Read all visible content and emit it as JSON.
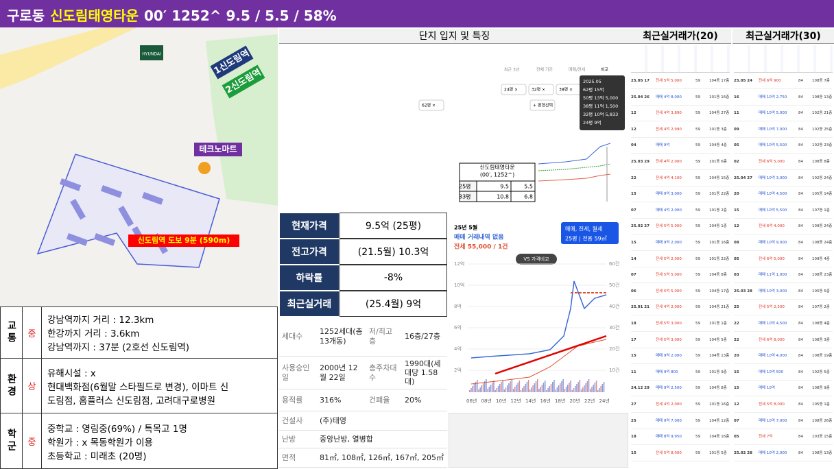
{
  "header": {
    "district": "구로동",
    "name": "신도림태영타운",
    "stats": "00′ 1252^ 9.5 / 5.5 / 58%"
  },
  "map": {
    "labels": [
      "1신도림역",
      "2신도림역",
      "테크노마트",
      "신도림역 도보 9분 (590m)",
      "HYUNDAI"
    ]
  },
  "location": {
    "rows": [
      {
        "category": "교통",
        "grade": "중",
        "lines": [
          "강남역까지 거리 : 12.3km",
          "한강까지 거리 : 3.6km",
          "강남역까지 : 37분 (2호선 신도림역)"
        ]
      },
      {
        "category": "환경",
        "grade": "상",
        "lines": [
          "유해시설 : x",
          "현대백화점(6월말 스타필드로 변경), 이마트 신",
          "도림점, 홈플러스 신도림점, 고려대구로병원"
        ]
      },
      {
        "category": "학군",
        "grade": "중",
        "lines": [
          "중학교 : 영림중(69%) / 특목고 1명",
          "학원가 : x 목동학원가 이용",
          "초등학교 : 미래초 (20명)"
        ]
      }
    ]
  },
  "middle": {
    "title": "단지 입지 및 특징",
    "compare": {
      "tabs": [
        "최근 3년",
        "전체 기간",
        "매매/전세",
        "비교"
      ],
      "filters": [
        "24평 ×",
        "32평 ×",
        "38평 ×",
        "62평 ×",
        "+ 평형선택"
      ],
      "tooltip": [
        "2025.05",
        "62평 15억",
        "50평 13억 5,000",
        "38평 11억 1,500",
        "32평 10억 5,833",
        "24평 9억"
      ],
      "legend": [
        "신도림태영타운",
        "(00′, 1252^)"
      ],
      "rows": [
        [
          "25평",
          "9.5",
          "5.5"
        ],
        [
          "33평",
          "10.8",
          "6.8"
        ]
      ]
    },
    "price_table": [
      [
        "현재가격",
        "9.5억 (25평)"
      ],
      [
        "전고가격",
        "(21.5월) 10.3억"
      ],
      [
        "하락률",
        "-8%"
      ],
      [
        "최근실거래",
        "(25.4월) 9억"
      ]
    ],
    "info_table": [
      [
        "세대수",
        "1252세대(총 13개동)",
        "저/최고층",
        "16층/27층"
      ],
      [
        "사용승인일",
        "2000년 12월 22일",
        "총주차대수",
        "1990대(세대당 1.58대)"
      ],
      [
        "용적률",
        "316%",
        "건폐율",
        "20%"
      ],
      [
        "건설사",
        "(주)태영"
      ],
      [
        "난방",
        "중앙난방, 열병합"
      ],
      [
        "면적",
        "81㎡, 108㎡, 126㎡, 167㎡, 205㎡"
      ]
    ],
    "trend": {
      "month": "25년 5월",
      "sale": "매매 거래내역 없음",
      "rent": "전세 55,000 / 1건",
      "filter": "매매, 전세, 월세",
      "size": "25평 | 전용 59㎡",
      "compare": "VS 가격비교",
      "left_ticks": [
        "12억",
        "10억",
        "8억",
        "6억",
        "4억",
        "2억"
      ],
      "right_ticks": [
        "60건",
        "50건",
        "40건",
        "30건",
        "20건",
        "10건"
      ],
      "x_ticks": [
        "06년",
        "08년",
        "10년",
        "12년",
        "14년",
        "16년",
        "18년",
        "20년",
        "22년",
        "24년"
      ]
    }
  },
  "transactions": [
    {
      "title": "최근실거래가(20)",
      "rows": [
        [
          "25.05 17",
          "전세 5억 5,000",
          "59",
          "104동 17층"
        ],
        [
          "25.04 26",
          "매매 4억 8,000",
          "59",
          "101동 16층"
        ],
        [
          "12",
          "전세 4억 3,890",
          "59",
          "104동 27층"
        ],
        [
          "12",
          "전세 4억 2,990",
          "59",
          "101동 3층"
        ],
        [
          "04",
          "매매 9억",
          "59",
          "104동 4층"
        ],
        [
          "25.03 29",
          "전세 4억 2,000",
          "59",
          "101동 6층"
        ],
        [
          "22",
          "전세 4억 4,100",
          "59",
          "104동 15층"
        ],
        [
          "15",
          "매매 9억 3,000",
          "59",
          "101동 22층"
        ],
        [
          "07",
          "매매 4억 2,000",
          "59",
          "101동 2층"
        ],
        [
          "25.02 27",
          "전세 5억 5,000",
          "59",
          "104동 1층"
        ],
        [
          "15",
          "매매 9억 2,000",
          "59",
          "101동 16층"
        ],
        [
          "14",
          "전세 5억 2,000",
          "59",
          "101동 22층"
        ],
        [
          "07",
          "전세 5억 5,000",
          "59",
          "104동 8층"
        ],
        [
          "06",
          "전세 5억 5,000",
          "59",
          "104동 17층"
        ],
        [
          "25.01 21",
          "전세 4억 2,000",
          "59",
          "104동 21층"
        ],
        [
          "18",
          "전세 5억 3,000",
          "59",
          "101동 1층"
        ],
        [
          "17",
          "전세 5억 3,000",
          "59",
          "104동 5층"
        ],
        [
          "15",
          "매매 9억 2,000",
          "59",
          "104동 13층"
        ],
        [
          "11",
          "매매 9억 800",
          "59",
          "101동 9층"
        ],
        [
          "24.12 29",
          "매매 9억 2,500",
          "59",
          "104동 8층"
        ],
        [
          "27",
          "전세 4억 2,000",
          "59",
          "101동 16층"
        ],
        [
          "25",
          "매매 9억 7,000",
          "59",
          "104동 12층"
        ],
        [
          "18",
          "매매 8억 9,950",
          "59",
          "104동 16층"
        ],
        [
          "15",
          "전세 5억 8,000",
          "59",
          "101동 5층"
        ]
      ]
    },
    {
      "title": "최근실거래가(30)",
      "rows": [
        [
          "25.05 24",
          "전세 6억 900",
          "84",
          "108동 7층"
        ],
        [
          "16",
          "매매 10억 2,750",
          "84",
          "108동 13층"
        ],
        [
          "11",
          "매매 10억 5,000",
          "84",
          "102동 21층"
        ],
        [
          "09",
          "매매 10억 7,000",
          "84",
          "102동 25층"
        ],
        [
          "05",
          "매매 10억 5,500",
          "84",
          "102동 23층"
        ],
        [
          "02",
          "전세 6억 5,000",
          "84",
          "108동 8층"
        ],
        [
          "25.04 27",
          "매매 10억 3,000",
          "84",
          "102동 24층"
        ],
        [
          "20",
          "매매 10억 4,500",
          "84",
          "105동 14층"
        ],
        [
          "15",
          "매매 10억 5,500",
          "84",
          "107동 1층"
        ],
        [
          "12",
          "전세 6억 4,000",
          "84",
          "109동 24층"
        ],
        [
          "08",
          "매매 10억 9,000",
          "84",
          "108동 24층"
        ],
        [
          "05",
          "전세 6억 5,000",
          "84",
          "109동 4층"
        ],
        [
          "03",
          "매매 11억 1,000",
          "84",
          "108동 23층"
        ],
        [
          "25.03 28",
          "매매 10억 3,000",
          "84",
          "105동 5층"
        ],
        [
          "25",
          "전세 5억 2,500",
          "84",
          "107동 2층"
        ],
        [
          "22",
          "매매 10억 4,500",
          "84",
          "108동 4층"
        ],
        [
          "22",
          "전세 6억 8,000",
          "84",
          "108동 3층"
        ],
        [
          "20",
          "매매 10억 4,000",
          "84",
          "108동 19층"
        ],
        [
          "15",
          "매매 10억 500",
          "84",
          "102동 5층"
        ],
        [
          "15",
          "매매 10억",
          "84",
          "108동 9층"
        ],
        [
          "12",
          "전세 5억 8,000",
          "84",
          "105동 1층"
        ],
        [
          "07",
          "매매 10억 7,000",
          "84",
          "108동 26층"
        ],
        [
          "05",
          "전세 7억",
          "84",
          "103동 15층"
        ],
        [
          "25.02 28",
          "매매 10억 2,000",
          "84",
          "108동 13층"
        ]
      ]
    }
  ]
}
